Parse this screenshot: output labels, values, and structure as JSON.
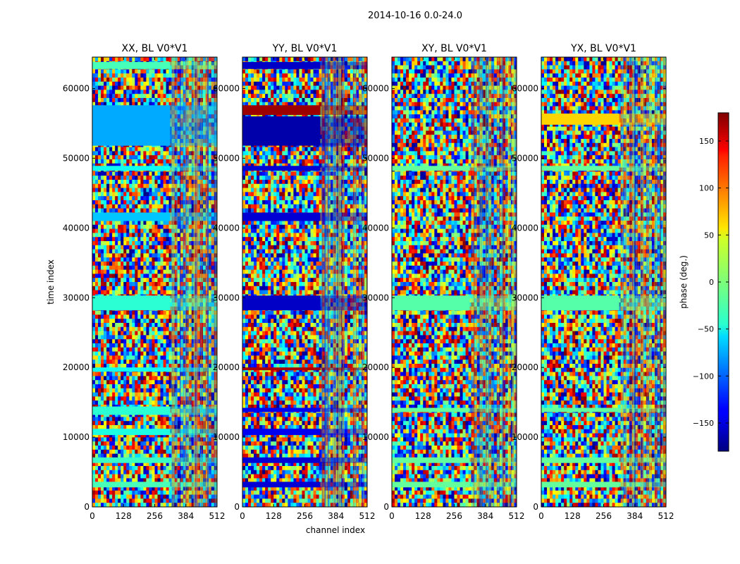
{
  "chart_data": {
    "type": "heatmap",
    "suptitle": "2014-10-16 0.0-24.0",
    "xlabel": "channel index",
    "ylabel": "time index",
    "xlim": [
      0,
      512
    ],
    "ylim": [
      0,
      64500
    ],
    "xticks": [
      0,
      128,
      256,
      384,
      512
    ],
    "yticks": [
      0,
      10000,
      20000,
      30000,
      40000,
      50000,
      60000
    ],
    "colorbar": {
      "label": "phase (deg.)",
      "range": [
        -180,
        180
      ],
      "ticks": [
        -150,
        -100,
        -50,
        0,
        50,
        100,
        150
      ],
      "colormap": "jet"
    },
    "panels": [
      {
        "title": "XX, BL V0*V1",
        "bands": [
          {
            "t0": 2800,
            "t1": 3600,
            "phase": -20
          },
          {
            "t0": 6300,
            "t1": 7100,
            "phase": -25
          },
          {
            "t0": 10300,
            "t1": 11200,
            "phase": -35
          },
          {
            "t0": 13200,
            "t1": 14400,
            "phase": -30
          },
          {
            "t0": 19400,
            "t1": 20000,
            "phase": -40
          },
          {
            "t0": 28200,
            "t1": 30300,
            "phase": -30
          },
          {
            "t0": 41000,
            "t1": 42200,
            "phase": -65
          },
          {
            "t0": 48200,
            "t1": 48900,
            "phase": -40
          },
          {
            "t0": 51800,
            "t1": 57600,
            "phase": -75
          },
          {
            "t0": 62800,
            "t1": 63800,
            "phase": -20
          }
        ]
      },
      {
        "title": "YY, BL V0*V1",
        "bands": [
          {
            "t0": 2800,
            "t1": 3600,
            "phase": -150
          },
          {
            "t0": 6300,
            "t1": 7100,
            "phase": -150
          },
          {
            "t0": 10300,
            "t1": 11200,
            "phase": -140
          },
          {
            "t0": 13600,
            "t1": 14200,
            "phase": -140
          },
          {
            "t0": 19600,
            "t1": 20000,
            "phase": 165
          },
          {
            "t0": 28200,
            "t1": 30300,
            "phase": -155
          },
          {
            "t0": 41000,
            "t1": 42200,
            "phase": -150
          },
          {
            "t0": 48200,
            "t1": 48900,
            "phase": -150
          },
          {
            "t0": 51800,
            "t1": 56000,
            "phase": -165
          },
          {
            "t0": 56200,
            "t1": 57600,
            "phase": 170
          },
          {
            "t0": 62800,
            "t1": 63800,
            "phase": -155
          }
        ]
      },
      {
        "title": "XY, BL V0*V1",
        "bands": [
          {
            "t0": 2800,
            "t1": 3600,
            "phase": -10
          },
          {
            "t0": 6300,
            "t1": 7100,
            "phase": -10
          },
          {
            "t0": 13600,
            "t1": 14200,
            "phase": -10
          },
          {
            "t0": 28200,
            "t1": 30300,
            "phase": -15
          },
          {
            "t0": 48200,
            "t1": 48900,
            "phase": -10
          }
        ]
      },
      {
        "title": "YX, BL V0*V1",
        "bands": [
          {
            "t0": 2800,
            "t1": 3600,
            "phase": -10
          },
          {
            "t0": 6300,
            "t1": 7100,
            "phase": -10
          },
          {
            "t0": 13600,
            "t1": 14200,
            "phase": -10
          },
          {
            "t0": 28200,
            "t1": 30300,
            "phase": -15
          },
          {
            "t0": 48200,
            "t1": 48900,
            "phase": -10
          },
          {
            "t0": 54800,
            "t1": 56400,
            "phase": 60
          }
        ]
      }
    ]
  }
}
